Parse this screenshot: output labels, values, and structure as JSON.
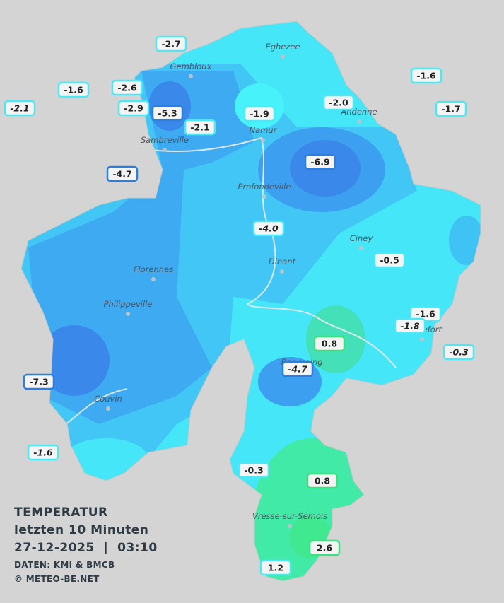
{
  "map": {
    "towns": [
      "Eghezee",
      "Gembloux",
      "Andenne",
      "Namur",
      "Sambreville",
      "Profondeville",
      "Ciney",
      "Dinant",
      "Florennes",
      "Philippeville",
      "Rochefort",
      "Beauraing",
      "Couvin",
      "Vresse-sur-Semois"
    ],
    "stations": [
      "-2.7",
      "-1.6",
      "-2.6",
      "-2.1",
      "-2.9",
      "-5.3",
      "-2.1",
      "-1.9",
      "-2.0",
      "-1.6",
      "-1.7",
      "-4.7",
      "-6.9",
      "-4.0",
      "-0.5",
      "-1.6",
      "-1.8",
      "0.8",
      "-0.3",
      "-4.7",
      "-7.3",
      "-1.6",
      "-0.3",
      "0.8",
      "2.6",
      "1.2"
    ],
    "legend": {
      "title": "TEMPERATUR",
      "subtitle": "letzten 10 Minuten",
      "datetime": "27-12-2025  |  03:10",
      "source": "DATEN: KMI & BMCB",
      "copyright": "© METEO-BE.NET"
    }
  }
}
